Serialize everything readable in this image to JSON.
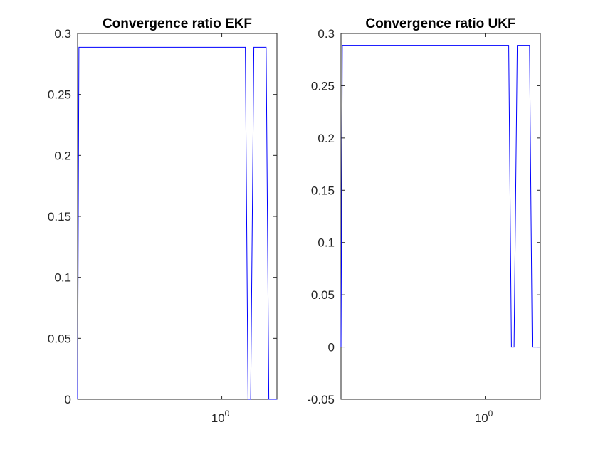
{
  "figure": {
    "background": "#ffffff"
  },
  "chart_data": [
    {
      "type": "line",
      "title": "Convergence ratio EKF",
      "xlabel": "",
      "ylabel": "",
      "x_scale": "log",
      "xlim": [
        0.2,
        1.85
      ],
      "ylim": [
        0,
        0.3
      ],
      "x_ticks": [
        {
          "value": 1,
          "base": "10",
          "exp": "0"
        }
      ],
      "y_ticks": [
        {
          "value": 0,
          "label": "0"
        },
        {
          "value": 0.05,
          "label": "0.05"
        },
        {
          "value": 0.1,
          "label": "0.1"
        },
        {
          "value": 0.15,
          "label": "0.15"
        },
        {
          "value": 0.2,
          "label": "0.2"
        },
        {
          "value": 0.25,
          "label": "0.25"
        },
        {
          "value": 0.3,
          "label": "0.3"
        }
      ],
      "grid": false,
      "series": [
        {
          "color": "#0000ff",
          "x": [
            0.2,
            0.203,
            1.3,
            1.34,
            1.38,
            1.43,
            1.64,
            1.69,
            1.85
          ],
          "y": [
            0,
            0.2887,
            0.2887,
            0,
            0,
            0.2887,
            0.2887,
            0,
            0
          ]
        }
      ]
    },
    {
      "type": "line",
      "title": "Convergence ratio UKF",
      "xlabel": "",
      "ylabel": "",
      "x_scale": "log",
      "xlim": [
        0.2,
        1.85
      ],
      "ylim": [
        -0.05,
        0.3
      ],
      "x_ticks": [
        {
          "value": 1,
          "base": "10",
          "exp": "0"
        }
      ],
      "y_ticks": [
        {
          "value": -0.05,
          "label": "-0.05"
        },
        {
          "value": 0,
          "label": "0"
        },
        {
          "value": 0.05,
          "label": "0.05"
        },
        {
          "value": 0.1,
          "label": "0.1"
        },
        {
          "value": 0.15,
          "label": "0.15"
        },
        {
          "value": 0.2,
          "label": "0.2"
        },
        {
          "value": 0.25,
          "label": "0.25"
        },
        {
          "value": 0.3,
          "label": "0.3"
        }
      ],
      "grid": false,
      "series": [
        {
          "color": "#0000ff",
          "x": [
            0.2,
            0.203,
            1.3,
            1.34,
            1.38,
            1.43,
            1.64,
            1.69,
            1.85
          ],
          "y": [
            0,
            0.2887,
            0.2887,
            0,
            0,
            0.2887,
            0.2887,
            0,
            0
          ]
        }
      ]
    }
  ]
}
